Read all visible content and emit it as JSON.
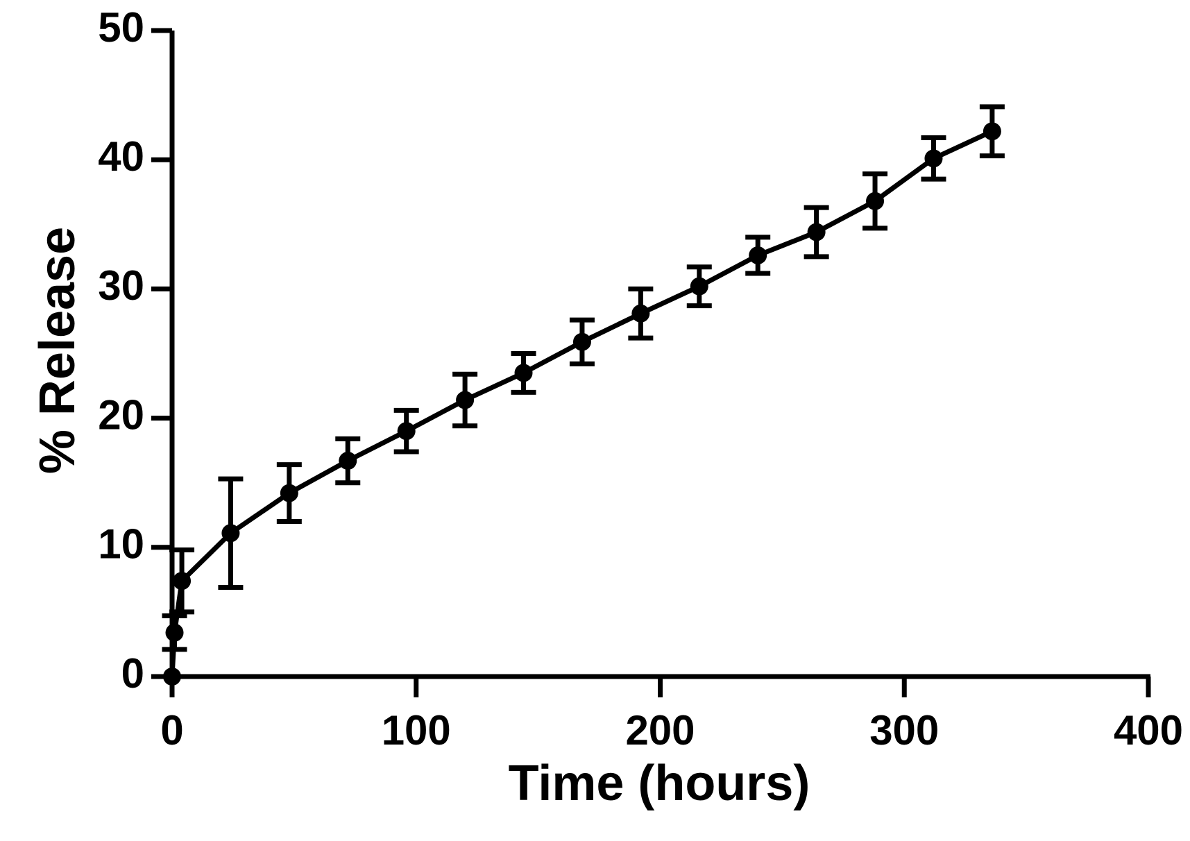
{
  "chart_data": {
    "type": "line",
    "title": "",
    "xlabel": "Time (hours)",
    "ylabel": "% Release",
    "xlim": [
      0,
      400
    ],
    "ylim": [
      0,
      50
    ],
    "x_ticks": [
      0,
      100,
      200,
      300,
      400
    ],
    "y_ticks": [
      0,
      10,
      20,
      30,
      40,
      50
    ],
    "x_tick_labels": [
      "0",
      "100",
      "200",
      "300",
      "400"
    ],
    "y_tick_labels": [
      "0",
      "10",
      "20",
      "30",
      "40",
      "50"
    ],
    "grid": false,
    "legend": "none",
    "color": "#000000",
    "series": [
      {
        "x": [
          0,
          1,
          4,
          24,
          48,
          72,
          96,
          120,
          144,
          168,
          192,
          216,
          240,
          264,
          288,
          312,
          336
        ],
        "y": [
          0,
          3.4,
          7.4,
          11.1,
          14.2,
          16.7,
          19.0,
          21.4,
          23.5,
          25.9,
          28.1,
          30.2,
          32.6,
          34.4,
          36.8,
          40.1,
          42.2
        ],
        "error": [
          0,
          1.3,
          2.4,
          4.2,
          2.2,
          1.7,
          1.6,
          2.0,
          1.5,
          1.7,
          1.9,
          1.5,
          1.4,
          1.9,
          2.1,
          1.6,
          1.9
        ]
      }
    ]
  }
}
